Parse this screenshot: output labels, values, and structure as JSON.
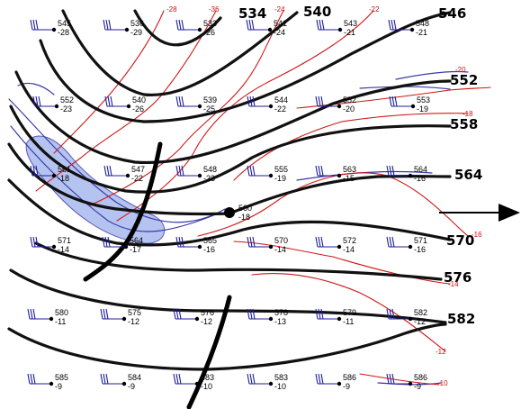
{
  "height_contours": [
    {
      "label": "534"
    },
    {
      "label": "540"
    },
    {
      "label": "546"
    },
    {
      "label": "552"
    },
    {
      "label": "558"
    },
    {
      "label": "564"
    },
    {
      "label": "570"
    },
    {
      "label": "576"
    },
    {
      "label": "582"
    }
  ],
  "temp_contours": [
    {
      "label": "-28"
    },
    {
      "label": "-36"
    },
    {
      "label": "-24"
    },
    {
      "label": "-22"
    },
    {
      "label": "-20"
    },
    {
      "label": "-18"
    },
    {
      "label": "-16"
    },
    {
      "label": "-14"
    },
    {
      "label": "-12"
    },
    {
      "label": "-10"
    }
  ],
  "low_center": {
    "height": "560",
    "temp": "-18"
  },
  "stations": [
    {
      "height": "545",
      "temp": "-28"
    },
    {
      "height": "536",
      "temp": "-29"
    },
    {
      "height": "533",
      "temp": "-26"
    },
    {
      "height": "541",
      "temp": "-24"
    },
    {
      "height": "543",
      "temp": "-21"
    },
    {
      "height": "548",
      "temp": "-21"
    },
    {
      "height": "552",
      "temp": "-23"
    },
    {
      "height": "540",
      "temp": "-26"
    },
    {
      "height": "539",
      "temp": "-25"
    },
    {
      "height": "544",
      "temp": "-22"
    },
    {
      "height": "552",
      "temp": "-20"
    },
    {
      "height": "553",
      "temp": "-19"
    },
    {
      "height": "561",
      "temp": "-18"
    },
    {
      "height": "547",
      "temp": "-22"
    },
    {
      "height": "548",
      "temp": "-23"
    },
    {
      "height": "555",
      "temp": "-19"
    },
    {
      "height": "563",
      "temp": "-15"
    },
    {
      "height": "564",
      "temp": "-16"
    },
    {
      "height": "571",
      "temp": "-14"
    },
    {
      "height": "564",
      "temp": "-17"
    },
    {
      "height": "565",
      "temp": "-16"
    },
    {
      "height": "570",
      "temp": "-14"
    },
    {
      "height": "572",
      "temp": "-14"
    },
    {
      "height": "571",
      "temp": "-16"
    },
    {
      "height": "580",
      "temp": "-11"
    },
    {
      "height": "575",
      "temp": "-12"
    },
    {
      "height": "576",
      "temp": "-12"
    },
    {
      "height": "578",
      "temp": "-13"
    },
    {
      "height": "579",
      "temp": "-11"
    },
    {
      "height": "582",
      "temp": "-12"
    },
    {
      "height": "585",
      "temp": "-9"
    },
    {
      "height": "584",
      "temp": "-9"
    },
    {
      "height": "583",
      "temp": "-10"
    },
    {
      "height": "583",
      "temp": "-10"
    },
    {
      "height": "586",
      "temp": "-9"
    },
    {
      "height": "586",
      "temp": "-9"
    }
  ],
  "colors": {
    "height": "#111111",
    "temperature": "#d01818",
    "isotach": "#3a3aa8",
    "jet_fill": "#a9b9ee",
    "barb": "#1f1f9c"
  },
  "motion_arrow": "east-arrow",
  "trough_axes": "two"
}
